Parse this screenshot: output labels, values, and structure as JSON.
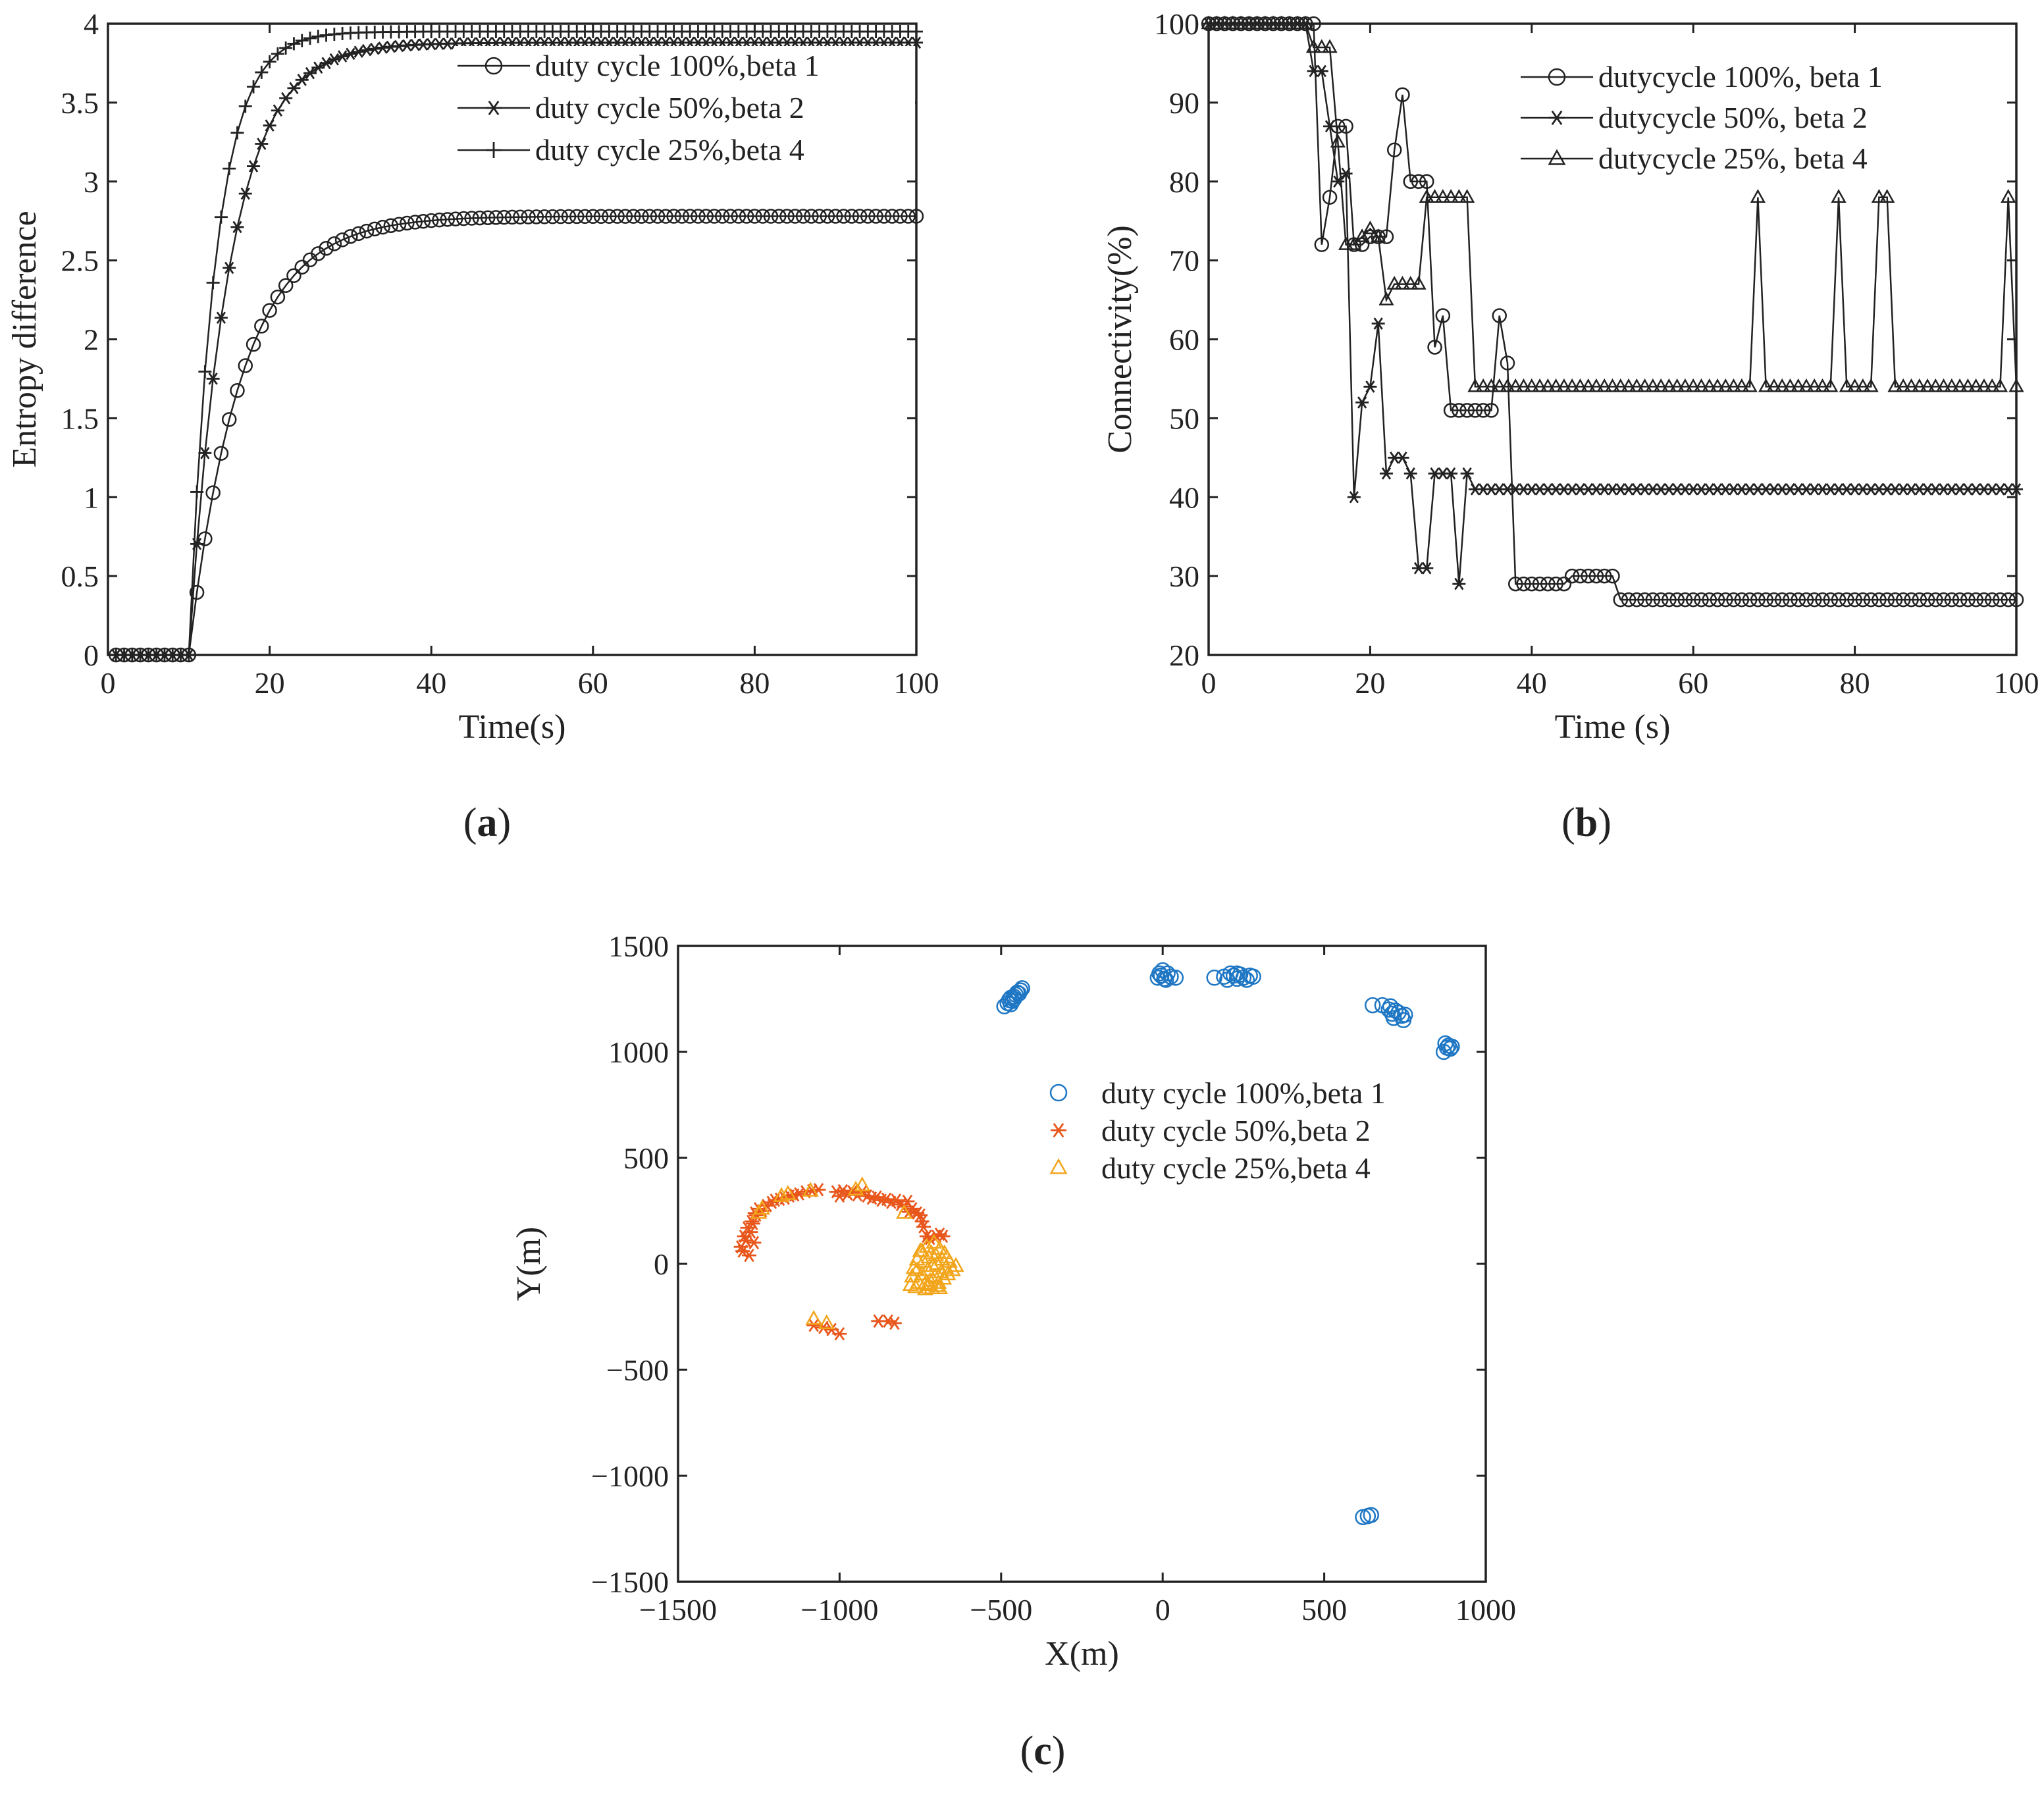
{
  "chart_data": [
    {
      "type": "line",
      "panel_label": "(a)",
      "panel_letter": "a",
      "xlabel": "Time(s)",
      "ylabel": "Entropy difference",
      "xlim": [
        0,
        100
      ],
      "ylim": [
        0,
        4
      ],
      "xticks": [
        0,
        20,
        40,
        60,
        80,
        100
      ],
      "yticks": [
        0,
        0.5,
        1,
        1.5,
        2,
        2.5,
        3,
        3.5,
        4
      ],
      "legend_position": "top-right",
      "series": [
        {
          "name": "duty cycle 100%,beta 1",
          "marker": "circle",
          "kind": "rise",
          "t0": 10,
          "final": 2.78,
          "tau": 6.5,
          "end": 100
        },
        {
          "name": "duty cycle 50%,beta 2",
          "marker": "star",
          "kind": "rise",
          "t0": 10,
          "final": 3.88,
          "tau": 5.0,
          "end": 100
        },
        {
          "name": "duty cycle 25%,beta 4",
          "marker": "plus",
          "kind": "rise",
          "t0": 10,
          "final": 3.95,
          "tau": 3.3,
          "end": 100
        }
      ]
    },
    {
      "type": "line",
      "panel_label": "(b)",
      "panel_letter": "b",
      "xlabel": "Time (s)",
      "ylabel": "Connectivity(%)",
      "xlim": [
        0,
        100
      ],
      "ylim": [
        20,
        100
      ],
      "xticks": [
        0,
        20,
        40,
        60,
        80,
        100
      ],
      "yticks": [
        20,
        30,
        40,
        50,
        60,
        70,
        80,
        90,
        100
      ],
      "legend_position": "top-right",
      "series": [
        {
          "name": "dutycycle 100%, beta 1",
          "marker": "circle",
          "values": [
            100,
            100,
            100,
            100,
            100,
            100,
            100,
            100,
            100,
            100,
            100,
            100,
            100,
            100,
            72,
            78,
            87,
            87,
            72,
            72,
            73,
            73,
            73,
            84,
            91,
            80,
            80,
            80,
            59,
            63,
            51,
            51,
            51,
            51,
            51,
            51,
            63,
            57,
            29,
            29,
            29,
            29,
            29,
            29,
            29,
            30,
            30,
            30,
            30,
            30,
            30,
            27,
            27,
            27,
            27,
            27,
            27,
            27,
            27,
            27,
            27,
            27,
            27,
            27,
            27,
            27,
            27,
            27,
            27,
            27,
            27,
            27,
            27,
            27,
            27,
            27,
            27,
            27,
            27,
            27,
            27,
            27,
            27,
            27,
            27,
            27,
            27,
            27,
            27,
            27,
            27,
            27,
            27,
            27,
            27,
            27,
            27,
            27,
            27,
            27,
            27
          ]
        },
        {
          "name": "dutycycle 50%, beta 2",
          "marker": "star",
          "values": [
            100,
            100,
            100,
            100,
            100,
            100,
            100,
            100,
            100,
            100,
            100,
            100,
            100,
            94,
            94,
            87,
            80,
            81,
            40,
            52,
            54,
            62,
            43,
            45,
            45,
            43,
            31,
            31,
            43,
            43,
            43,
            29,
            43,
            41,
            41,
            41,
            41,
            41,
            41,
            41,
            41,
            41,
            41,
            41,
            41,
            41,
            41,
            41,
            41,
            41,
            41,
            41,
            41,
            41,
            41,
            41,
            41,
            41,
            41,
            41,
            41,
            41,
            41,
            41,
            41,
            41,
            41,
            41,
            41,
            41,
            41,
            41,
            41,
            41,
            41,
            41,
            41,
            41,
            41,
            41,
            41,
            41,
            41,
            41,
            41,
            41,
            41,
            41,
            41,
            41,
            41,
            41,
            41,
            41,
            41,
            41,
            41,
            41,
            41,
            41,
            41
          ]
        },
        {
          "name": "dutycycle 25%, beta 4",
          "marker": "triangle",
          "values": [
            100,
            100,
            100,
            100,
            100,
            100,
            100,
            100,
            100,
            100,
            100,
            100,
            100,
            97,
            97,
            97,
            85,
            72,
            72,
            73,
            74,
            73,
            65,
            67,
            67,
            67,
            67,
            78,
            78,
            78,
            78,
            78,
            78,
            54,
            54,
            54,
            54,
            54,
            54,
            54,
            54,
            54,
            54,
            54,
            54,
            54,
            54,
            54,
            54,
            54,
            54,
            54,
            54,
            54,
            54,
            54,
            54,
            54,
            54,
            54,
            54,
            54,
            54,
            54,
            54,
            54,
            54,
            54,
            78,
            54,
            54,
            54,
            54,
            54,
            54,
            54,
            54,
            54,
            78,
            54,
            54,
            54,
            54,
            78,
            78,
            54,
            54,
            54,
            54,
            54,
            54,
            54,
            54,
            54,
            54,
            54,
            54,
            54,
            54,
            78,
            54
          ]
        }
      ]
    },
    {
      "type": "scatter",
      "panel_label": "(c)",
      "panel_letter": "c",
      "xlabel": "X(m)",
      "ylabel": "Y(m)",
      "xlim": [
        -1500,
        1000
      ],
      "ylim": [
        -1500,
        1500
      ],
      "xticks": [
        -1500,
        -1000,
        -500,
        0,
        500,
        1000
      ],
      "yticks": [
        -1500,
        -1000,
        -500,
        0,
        500,
        1000,
        1500
      ],
      "xtick_labels": [
        "−1500",
        "−1000",
        "−500",
        "0",
        "500",
        "1000"
      ],
      "ytick_labels": [
        "−1500",
        "−1000",
        "−500",
        "0",
        "500",
        "1000",
        "1500"
      ],
      "legend_position": "top-right",
      "series": [
        {
          "name": "duty cycle 100%,beta 1",
          "marker": "circle",
          "color": "#1f77c4",
          "points": [
            [
              -490,
              1215
            ],
            [
              -480,
              1230
            ],
            [
              -475,
              1245
            ],
            [
              -470,
              1255
            ],
            [
              -465,
              1240
            ],
            [
              -460,
              1260
            ],
            [
              -455,
              1270
            ],
            [
              -450,
              1280
            ],
            [
              -445,
              1275
            ],
            [
              -440,
              1290
            ],
            [
              -435,
              1300
            ],
            [
              -470,
              1225
            ],
            [
              -460,
              1250
            ],
            [
              -15,
              1350
            ],
            [
              -5,
              1360
            ],
            [
              0,
              1385
            ],
            [
              5,
              1345
            ],
            [
              10,
              1340
            ],
            [
              15,
              1370
            ],
            [
              25,
              1355
            ],
            [
              40,
              1350
            ],
            [
              -10,
              1370
            ],
            [
              160,
              1350
            ],
            [
              190,
              1355
            ],
            [
              200,
              1340
            ],
            [
              210,
              1370
            ],
            [
              220,
              1360
            ],
            [
              230,
              1345
            ],
            [
              240,
              1365
            ],
            [
              250,
              1350
            ],
            [
              260,
              1340
            ],
            [
              270,
              1360
            ],
            [
              280,
              1355
            ],
            [
              230,
              1370
            ],
            [
              650,
              1220
            ],
            [
              680,
              1220
            ],
            [
              700,
              1200
            ],
            [
              710,
              1180
            ],
            [
              715,
              1160
            ],
            [
              720,
              1195
            ],
            [
              730,
              1185
            ],
            [
              740,
              1170
            ],
            [
              745,
              1150
            ],
            [
              750,
              1175
            ],
            [
              705,
              1215
            ],
            [
              870,
              1000
            ],
            [
              875,
              1040
            ],
            [
              880,
              1020
            ],
            [
              885,
              1030
            ],
            [
              890,
              1015
            ],
            [
              895,
              1025
            ],
            [
              620,
              -1195
            ],
            [
              635,
              -1190
            ],
            [
              645,
              -1185
            ]
          ]
        },
        {
          "name": "duty cycle 50%,beta 2",
          "marker": "star",
          "color": "#e8561c",
          "points": [
            [
              -1305,
              80
            ],
            [
              -1300,
              60
            ],
            [
              -1295,
              130
            ],
            [
              -1290,
              110
            ],
            [
              -1285,
              170
            ],
            [
              -1280,
              40
            ],
            [
              -1275,
              150
            ],
            [
              -1272,
              200
            ],
            [
              -1268,
              190
            ],
            [
              -1265,
              100
            ],
            [
              -1262,
              240
            ],
            [
              -1258,
              230
            ],
            [
              -1250,
              260
            ],
            [
              -1240,
              250
            ],
            [
              -1225,
              275
            ],
            [
              -1210,
              290
            ],
            [
              -1200,
              300
            ],
            [
              -1185,
              305
            ],
            [
              -1170,
              310
            ],
            [
              -1155,
              320
            ],
            [
              -1140,
              325
            ],
            [
              -1125,
              330
            ],
            [
              -1105,
              340
            ],
            [
              -1085,
              345
            ],
            [
              -1065,
              350
            ],
            [
              -1010,
              340
            ],
            [
              -1000,
              320
            ],
            [
              -990,
              345
            ],
            [
              -975,
              330
            ],
            [
              -960,
              340
            ],
            [
              -945,
              325
            ],
            [
              -930,
              340
            ],
            [
              -915,
              320
            ],
            [
              -900,
              310
            ],
            [
              -885,
              315
            ],
            [
              -870,
              300
            ],
            [
              -855,
              305
            ],
            [
              -840,
              290
            ],
            [
              -825,
              300
            ],
            [
              -810,
              280
            ],
            [
              -800,
              270
            ],
            [
              -790,
              295
            ],
            [
              -785,
              245
            ],
            [
              -775,
              260
            ],
            [
              -760,
              240
            ],
            [
              -750,
              230
            ],
            [
              -745,
              200
            ],
            [
              -740,
              175
            ],
            [
              -730,
              130
            ],
            [
              -720,
              120
            ],
            [
              -700,
              130
            ],
            [
              -690,
              140
            ],
            [
              -680,
              130
            ],
            [
              -1080,
              -290
            ],
            [
              -1050,
              -300
            ],
            [
              -1025,
              -310
            ],
            [
              -1000,
              -330
            ],
            [
              -880,
              -270
            ],
            [
              -850,
              -270
            ],
            [
              -830,
              -280
            ]
          ]
        },
        {
          "name": "duty cycle 25%,beta 4",
          "marker": "triangle",
          "color": "#f2a51a",
          "points": [
            [
              -1250,
              240
            ],
            [
              -1240,
              260
            ],
            [
              -1180,
              320
            ],
            [
              -1160,
              330
            ],
            [
              -1090,
              345
            ],
            [
              -950,
              350
            ],
            [
              -930,
              370
            ],
            [
              -800,
              240
            ],
            [
              -1080,
              -260
            ],
            [
              -1040,
              -280
            ],
            [
              -780,
              -100
            ],
            [
              -775,
              -60
            ],
            [
              -770,
              -20
            ],
            [
              -765,
              -110
            ],
            [
              -760,
              20
            ],
            [
              -755,
              -90
            ],
            [
              -750,
              60
            ],
            [
              -745,
              -50
            ],
            [
              -740,
              10
            ],
            [
              -735,
              -120
            ],
            [
              -730,
              80
            ],
            [
              -728,
              -30
            ],
            [
              -724,
              30
            ],
            [
              -720,
              -80
            ],
            [
              -716,
              50
            ],
            [
              -712,
              -10
            ],
            [
              -708,
              100
            ],
            [
              -705,
              -60
            ],
            [
              -702,
              40
            ],
            [
              -698,
              0
            ],
            [
              -694,
              -90
            ],
            [
              -690,
              70
            ],
            [
              -686,
              -40
            ],
            [
              -682,
              20
            ],
            [
              -678,
              -70
            ],
            [
              -675,
              50
            ],
            [
              -671,
              -20
            ],
            [
              -668,
              30
            ],
            [
              -665,
              -50
            ],
            [
              -660,
              10
            ],
            [
              -650,
              -30
            ],
            [
              -640,
              -10
            ],
            [
              -725,
              -100
            ],
            [
              -715,
              -115
            ],
            [
              -700,
              -105
            ],
            [
              -690,
              -115
            ],
            [
              -735,
              -95
            ],
            [
              -745,
              60
            ],
            [
              -760,
              -30
            ]
          ]
        }
      ]
    }
  ]
}
